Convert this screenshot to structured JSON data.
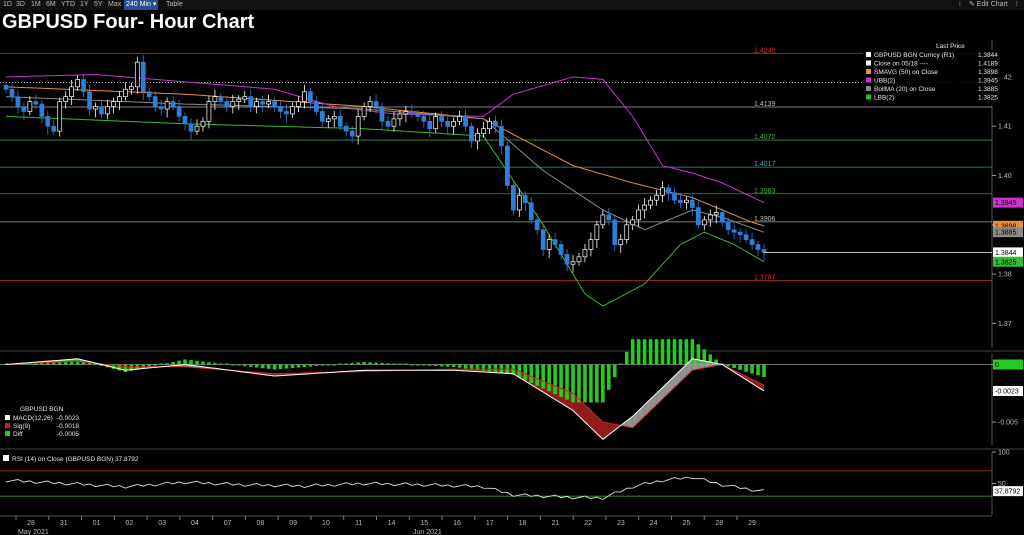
{
  "toolbar": {
    "items": [
      "1D",
      "3D",
      "1M",
      "6M",
      "YTD",
      "1Y",
      "5Y",
      "Max",
      "240 Min ▾",
      "Table"
    ],
    "active_index": 8,
    "right": [
      "⁝",
      "✎ Edit Chart",
      "⁝"
    ]
  },
  "title": "GBPUSD Four- Hour Chart",
  "legend_main": {
    "header": "Last Price",
    "rows": [
      {
        "label": "GBPUSD BGN Curncy  (R1)",
        "value": "1.3844",
        "color": "#ffffff"
      },
      {
        "label": "Close on 05/18 ----",
        "value": "1.4189",
        "color": "#ffffff"
      },
      {
        "label": "SMAVG (50)  on Close",
        "value": "1.3898",
        "color": "#e8913a"
      },
      {
        "label": "UBB(2)",
        "value": "1.3945",
        "color": "#cc33cc"
      },
      {
        "label": "BollMA (20)  on Close",
        "value": "1.3885",
        "color": "#8a8a8a"
      },
      {
        "label": "LBB(2)",
        "value": "1.3825",
        "color": "#33bb33"
      }
    ]
  },
  "legend_macd": {
    "header": "GBPUSD BGN",
    "rows": [
      {
        "label": "MACD(12,26)",
        "value": "-0.0023",
        "color": "#ffffff"
      },
      {
        "label": "Sig(9)",
        "value": "-0.0018",
        "color": "#cc2222"
      },
      {
        "label": "Diff",
        "value": "-0.0005",
        "color": "#22cc22"
      }
    ]
  },
  "legend_rsi": "RSI (14)  on Close (GBPUSD BGN) 37.8792",
  "colors": {
    "up": "#ffffff",
    "down": "#2f7fd8",
    "ubb": "#cc33cc",
    "lbb": "#33bb33",
    "ma20": "#8a8a8a",
    "sma50": "#e8913a",
    "macd": "#ffffff",
    "signal": "#cc2222",
    "hist": "#22cc22"
  },
  "chart_data": [
    {
      "type": "candlestick",
      "title": "GBPUSD Four- Hour Chart",
      "ylim": [
        1.365,
        1.4275
      ],
      "yticks": [
        1.37,
        1.38,
        1.39,
        1.4,
        1.41,
        1.42
      ],
      "ytick_labels": [
        "1.37",
        "1.38",
        "1.39",
        "1.40",
        "1.41",
        "1.42"
      ],
      "x_labels": [
        "28",
        "31",
        "01",
        "02",
        "03",
        "04",
        "07",
        "08",
        "09",
        "10",
        "11",
        "14",
        "15",
        "16",
        "17",
        "18",
        "21",
        "22",
        "23",
        "24",
        "25",
        "28",
        "29"
      ],
      "month_labels": [
        "May 2021",
        "Jun 2021"
      ],
      "close": [
        1.4175,
        1.416,
        1.414,
        1.413,
        1.415,
        1.4145,
        1.412,
        1.41,
        1.409,
        1.415,
        1.416,
        1.418,
        1.4195,
        1.417,
        1.4135,
        1.414,
        1.4125,
        1.414,
        1.415,
        1.416,
        1.4175,
        1.418,
        1.423,
        1.417,
        1.416,
        1.414,
        1.4135,
        1.415,
        1.414,
        1.412,
        1.4105,
        1.409,
        1.41,
        1.411,
        1.415,
        1.416,
        1.415,
        1.414,
        1.415,
        1.4155,
        1.416,
        1.414,
        1.415,
        1.4145,
        1.415,
        1.414,
        1.413,
        1.4125,
        1.414,
        1.415,
        1.417,
        1.415,
        1.413,
        1.411,
        1.4115,
        1.412,
        1.41,
        1.409,
        1.408,
        1.412,
        1.414,
        1.415,
        1.414,
        1.411,
        1.41,
        1.4115,
        1.4125,
        1.413,
        1.4125,
        1.412,
        1.411,
        1.4095,
        1.412,
        1.411,
        1.41,
        1.411,
        1.412,
        1.41,
        1.407,
        1.4085,
        1.4095,
        1.411,
        1.41,
        1.406,
        1.398,
        1.393,
        1.396,
        1.3945,
        1.391,
        1.389,
        1.385,
        1.387,
        1.386,
        1.384,
        1.382,
        1.3825,
        1.3835,
        1.385,
        1.387,
        1.39,
        1.392,
        1.391,
        1.386,
        1.387,
        1.39,
        1.391,
        1.393,
        1.394,
        1.395,
        1.396,
        1.3975,
        1.3965,
        1.395,
        1.3945,
        1.395,
        1.3935,
        1.39,
        1.391,
        1.392,
        1.3925,
        1.3905,
        1.389,
        1.3885,
        1.388,
        1.387,
        1.386,
        1.385,
        1.3844
      ],
      "series": [
        {
          "name": "GBPUSD BGN Curncy",
          "last": 1.3844
        },
        {
          "name": "Close on 05/18",
          "level": 1.4189
        },
        {
          "name": "SMAVG (50)  on Close",
          "values_at": [
            [
              0,
              1.418
            ],
            [
              30,
              1.4165
            ],
            [
              60,
              1.414
            ],
            [
              80,
              1.4115
            ],
            [
              95,
              1.402
            ],
            [
              105,
              1.3985
            ],
            [
              115,
              1.3955
            ],
            [
              125,
              1.3905
            ],
            [
              127,
              1.3898
            ]
          ]
        },
        {
          "name": "UBB(2)",
          "values_at": [
            [
              0,
              1.42
            ],
            [
              15,
              1.4205
            ],
            [
              30,
              1.419
            ],
            [
              45,
              1.4175
            ],
            [
              55,
              1.414
            ],
            [
              65,
              1.4125
            ],
            [
              80,
              1.412
            ],
            [
              85,
              1.4165
            ],
            [
              95,
              1.42
            ],
            [
              100,
              1.4195
            ],
            [
              105,
              1.412
            ],
            [
              110,
              1.402
            ],
            [
              115,
              1.4005
            ],
            [
              120,
              1.3985
            ],
            [
              127,
              1.3945
            ]
          ]
        },
        {
          "name": "BollMA (20)  on Close",
          "values_at": [
            [
              0,
              1.416
            ],
            [
              30,
              1.4145
            ],
            [
              60,
              1.4135
            ],
            [
              80,
              1.4115
            ],
            [
              90,
              1.401
            ],
            [
              100,
              1.393
            ],
            [
              107,
              1.389
            ],
            [
              115,
              1.393
            ],
            [
              120,
              1.3915
            ],
            [
              127,
              1.3885
            ]
          ]
        },
        {
          "name": "LBB(2)",
          "values_at": [
            [
              0,
              1.412
            ],
            [
              30,
              1.4105
            ],
            [
              60,
              1.4095
            ],
            [
              80,
              1.408
            ],
            [
              90,
              1.39
            ],
            [
              97,
              1.376
            ],
            [
              100,
              1.3735
            ],
            [
              107,
              1.378
            ],
            [
              113,
              1.386
            ],
            [
              117,
              1.3885
            ],
            [
              122,
              1.386
            ],
            [
              127,
              1.3825
            ]
          ]
        }
      ],
      "levels": [
        {
          "value": 1.4248,
          "label": "1.4248",
          "color": "#cc3333"
        },
        {
          "value": 1.4189,
          "label": "",
          "color": "#ffffff",
          "style": "dashed"
        },
        {
          "value": 1.4139,
          "label": "1.4139",
          "color": "#bbbbbb"
        },
        {
          "value": 1.4072,
          "label": "1.4072",
          "color": "#44aa44"
        },
        {
          "value": 1.4017,
          "label": "1.4017",
          "color": "#44aaaa"
        },
        {
          "value": 1.3963,
          "label": "1.3963",
          "color": "#44aa44"
        },
        {
          "value": 1.3906,
          "label": "1.3906",
          "color": "#bbbbbb"
        },
        {
          "value": 1.3787,
          "label": "1.3787",
          "color": "#cc3333"
        }
      ],
      "right_labels": [
        {
          "value": 1.3945,
          "label": "1.3945",
          "color": "#cc33cc"
        },
        {
          "value": 1.3898,
          "label": "1.3898",
          "color": "#e8913a"
        },
        {
          "value": 1.3885,
          "label": "1.3885",
          "color": "#8a8a8a"
        },
        {
          "value": 1.3844,
          "label": "1.3844",
          "color": "#ffffff"
        },
        {
          "value": 1.3825,
          "label": "1.3825",
          "color": "#33bb33"
        }
      ]
    },
    {
      "type": "line",
      "title": "MACD",
      "ylim": [
        -0.007,
        0.001
      ],
      "yticks": [
        0,
        -0.005
      ],
      "ytick_labels": [
        "0",
        "-0.005"
      ],
      "series": [
        {
          "name": "MACD(12,26)",
          "last": -0.0023,
          "values_at": [
            [
              0,
              0.0
            ],
            [
              12,
              0.0005
            ],
            [
              20,
              -0.0005
            ],
            [
              30,
              0.0
            ],
            [
              45,
              -0.001
            ],
            [
              60,
              -0.0005
            ],
            [
              75,
              -0.0005
            ],
            [
              85,
              -0.0008
            ],
            [
              95,
              -0.004
            ],
            [
              100,
              -0.0065
            ],
            [
              105,
              -0.0045
            ],
            [
              110,
              -0.002
            ],
            [
              115,
              0.0005
            ],
            [
              120,
              0.0
            ],
            [
              127,
              -0.0023
            ]
          ]
        },
        {
          "name": "Sig(9)",
          "last": -0.0018,
          "values_at": [
            [
              0,
              0.0
            ],
            [
              12,
              0.0003
            ],
            [
              20,
              -0.0002
            ],
            [
              30,
              -0.0002
            ],
            [
              45,
              -0.0008
            ],
            [
              60,
              -0.0006
            ],
            [
              75,
              -0.0004
            ],
            [
              85,
              -0.0004
            ],
            [
              95,
              -0.0025
            ],
            [
              100,
              -0.005
            ],
            [
              105,
              -0.0055
            ],
            [
              110,
              -0.003
            ],
            [
              115,
              -0.0005
            ],
            [
              120,
              0.0
            ],
            [
              127,
              -0.0018
            ]
          ]
        },
        {
          "name": "Diff",
          "last": -0.0005
        }
      ],
      "right_labels": [
        {
          "value": 0.0,
          "label": "0",
          "color": "#22cc22"
        },
        {
          "value": -0.0023,
          "label": "-0.0023",
          "color": "#ffffff"
        }
      ]
    },
    {
      "type": "line",
      "title": "RSI (14)  on Close (GBPUSD BGN)",
      "ylim": [
        0,
        100
      ],
      "yticks": [
        100,
        50
      ],
      "ytick_labels": [
        "100",
        "50"
      ],
      "levels": [
        {
          "value": 70,
          "color": "#cc3333"
        },
        {
          "value": 30,
          "color": "#33bb33"
        }
      ],
      "series": [
        {
          "name": "RSI",
          "last": 37.8792,
          "values_at": [
            [
              0,
              55
            ],
            [
              10,
              50
            ],
            [
              20,
              45
            ],
            [
              30,
              52
            ],
            [
              40,
              48
            ],
            [
              50,
              46
            ],
            [
              60,
              50
            ],
            [
              70,
              48
            ],
            [
              80,
              45
            ],
            [
              85,
              32
            ],
            [
              90,
              30
            ],
            [
              95,
              28
            ],
            [
              100,
              27
            ],
            [
              105,
              45
            ],
            [
              110,
              55
            ],
            [
              115,
              60
            ],
            [
              120,
              48
            ],
            [
              125,
              40
            ],
            [
              127,
              37.88
            ]
          ]
        }
      ],
      "right_labels": [
        {
          "value": 37.8792,
          "label": "37.8792",
          "color": "#ffffff"
        }
      ]
    }
  ]
}
